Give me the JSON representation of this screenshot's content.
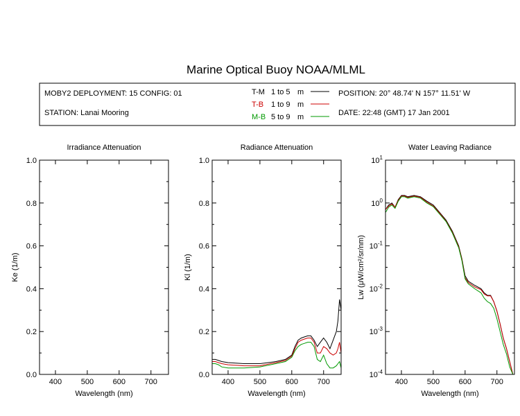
{
  "title": "Marine Optical Buoy NOAA/MLML",
  "info": {
    "deployment": "MOBY2 DEPLOYMENT: 15 CONFIG: 01",
    "station": "STATION: Lanai Mooring",
    "position": "POSITION: 20° 48.74' N   157° 11.51' W",
    "date": "DATE: 22:48 (GMT) 17 Jan 2001",
    "legend": [
      {
        "code": "T-M",
        "range": "1 to 5",
        "unit": "m",
        "color": "#000000"
      },
      {
        "code": "T-B",
        "range": "1 to 9",
        "unit": "m",
        "color": "#cc0000"
      },
      {
        "code": "M-B",
        "range": "5 to 9",
        "unit": "m",
        "color": "#009900"
      }
    ]
  },
  "colors": {
    "tm": "#000000",
    "tb": "#cc0000",
    "mb": "#009900"
  },
  "chart_data": [
    {
      "type": "line",
      "title": "Irradiance Attenuation",
      "xlabel": "Wavelength (nm)",
      "ylabel": "Ke  (1/m)",
      "xlim": [
        350,
        755
      ],
      "ylim": [
        0.0,
        1.0
      ],
      "xticks": [
        400,
        500,
        600,
        700
      ],
      "yticks": [
        "0.0",
        "0.2",
        "0.4",
        "0.6",
        "0.8",
        "1.0"
      ],
      "series": []
    },
    {
      "type": "line",
      "title": "Radiance Attenuation",
      "xlabel": "Wavelength (nm)",
      "ylabel": "Kl  (1/m)",
      "xlim": [
        350,
        755
      ],
      "ylim": [
        0.0,
        1.0
      ],
      "xticks": [
        400,
        500,
        600,
        700
      ],
      "yticks": [
        "0.0",
        "0.2",
        "0.4",
        "0.6",
        "0.8",
        "1.0"
      ],
      "series": [
        {
          "key": "tm",
          "x": [
            350,
            360,
            370,
            380,
            400,
            450,
            500,
            550,
            580,
            600,
            610,
            620,
            630,
            640,
            650,
            660,
            670,
            680,
            690,
            700,
            710,
            720,
            730,
            740,
            745,
            750,
            755
          ],
          "y": [
            0.07,
            0.07,
            0.065,
            0.06,
            0.055,
            0.05,
            0.05,
            0.06,
            0.07,
            0.09,
            0.13,
            0.16,
            0.17,
            0.175,
            0.18,
            0.18,
            0.16,
            0.13,
            0.15,
            0.17,
            0.15,
            0.12,
            0.16,
            0.2,
            0.25,
            0.35,
            0.3
          ]
        },
        {
          "key": "tb",
          "x": [
            350,
            360,
            370,
            380,
            400,
            450,
            500,
            550,
            580,
            600,
            610,
            620,
            630,
            640,
            650,
            660,
            670,
            680,
            690,
            700,
            710,
            720,
            730,
            740,
            745,
            750,
            755
          ],
          "y": [
            0.06,
            0.06,
            0.055,
            0.05,
            0.045,
            0.04,
            0.04,
            0.055,
            0.065,
            0.085,
            0.12,
            0.15,
            0.16,
            0.165,
            0.17,
            0.17,
            0.15,
            0.1,
            0.1,
            0.13,
            0.12,
            0.1,
            0.09,
            0.1,
            0.12,
            0.15,
            0.1
          ]
        },
        {
          "key": "mb",
          "x": [
            350,
            360,
            370,
            380,
            400,
            450,
            500,
            550,
            580,
            600,
            610,
            620,
            630,
            640,
            650,
            660,
            670,
            680,
            690,
            700,
            710,
            720,
            730,
            740,
            745,
            750,
            755
          ],
          "y": [
            0.05,
            0.05,
            0.045,
            0.035,
            0.03,
            0.03,
            0.035,
            0.05,
            0.06,
            0.08,
            0.11,
            0.13,
            0.14,
            0.145,
            0.15,
            0.15,
            0.13,
            0.07,
            0.06,
            0.09,
            0.05,
            0.03,
            0.03,
            0.04,
            0.05,
            0.06,
            0.03
          ]
        }
      ]
    },
    {
      "type": "line",
      "title": "Water Leaving Radiance",
      "xlabel": "Wavelength (nm)",
      "ylabel": "Lw  (μW/cm²/sr/nm)",
      "xlim": [
        350,
        755
      ],
      "ylim": [
        0.0001,
        10
      ],
      "yscale": "log",
      "xticks": [
        400,
        500,
        600,
        700
      ],
      "yticks": [
        {
          "base": "10",
          "exp": "-4"
        },
        {
          "base": "10",
          "exp": "-3"
        },
        {
          "base": "10",
          "exp": "-2"
        },
        {
          "base": "10",
          "exp": "-1"
        },
        {
          "base": "10",
          "exp": "0"
        },
        {
          "base": "10",
          "exp": "1"
        }
      ],
      "series": [
        {
          "key": "tm",
          "x": [
            350,
            360,
            370,
            380,
            390,
            400,
            410,
            420,
            440,
            460,
            480,
            500,
            520,
            540,
            560,
            580,
            590,
            600,
            610,
            630,
            650,
            660,
            670,
            680,
            690,
            700,
            710,
            720,
            730,
            740,
            750
          ],
          "y": [
            0.7,
            0.9,
            1.0,
            0.8,
            1.2,
            1.5,
            1.5,
            1.4,
            1.5,
            1.4,
            1.1,
            0.9,
            0.6,
            0.4,
            0.22,
            0.1,
            0.05,
            0.02,
            0.015,
            0.012,
            0.01,
            0.008,
            0.007,
            0.007,
            0.005,
            0.003,
            0.0015,
            0.0007,
            0.0004,
            0.0002,
            0.0001
          ]
        },
        {
          "key": "tb",
          "x": [
            350,
            360,
            370,
            380,
            390,
            400,
            410,
            420,
            440,
            460,
            480,
            500,
            520,
            540,
            560,
            580,
            590,
            600,
            610,
            630,
            650,
            660,
            670,
            680,
            690,
            700,
            710,
            720,
            730,
            740,
            750
          ],
          "y": [
            0.7,
            0.85,
            0.95,
            0.8,
            1.15,
            1.45,
            1.45,
            1.35,
            1.45,
            1.35,
            1.05,
            0.85,
            0.58,
            0.38,
            0.21,
            0.095,
            0.048,
            0.018,
            0.014,
            0.011,
            0.0095,
            0.0075,
            0.0068,
            0.0068,
            0.005,
            0.003,
            0.0015,
            0.0007,
            0.0004,
            0.0002,
            0.0001
          ]
        },
        {
          "key": "mb",
          "x": [
            350,
            360,
            370,
            380,
            390,
            400,
            410,
            420,
            440,
            460,
            480,
            500,
            520,
            540,
            560,
            580,
            590,
            600,
            610,
            630,
            650,
            660,
            670,
            680,
            690,
            700,
            710,
            720,
            730,
            740,
            750
          ],
          "y": [
            0.6,
            0.8,
            0.9,
            0.75,
            1.1,
            1.4,
            1.4,
            1.3,
            1.4,
            1.3,
            1.0,
            0.82,
            0.55,
            0.37,
            0.2,
            0.09,
            0.045,
            0.017,
            0.013,
            0.01,
            0.008,
            0.006,
            0.005,
            0.0045,
            0.0035,
            0.002,
            0.001,
            0.0005,
            0.0003,
            0.00015,
            0.0001
          ]
        }
      ]
    }
  ]
}
